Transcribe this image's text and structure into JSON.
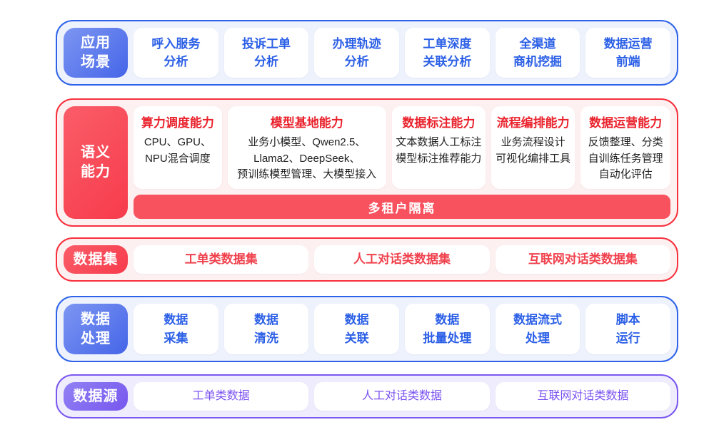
{
  "colors": {
    "blue_border": "#2e63e9",
    "blue_text": "#2b5fe6",
    "red_border": "#f8303c",
    "red_text": "#ea222c",
    "purple_border": "#7a58ef",
    "purple_text": "#7a52f0",
    "banner_bg": "#f8525f",
    "body_text": "#1f1f1f"
  },
  "scenarios": {
    "label": "应用\n场景",
    "items": [
      "呼入服务\n分析",
      "投诉工单\n分析",
      "办理轨迹\n分析",
      "工单深度\n关联分析",
      "全渠道\n商机挖掘",
      "数据运营\n前端"
    ]
  },
  "semantic": {
    "label": "语义\n能力",
    "columns": [
      {
        "title": "算力调度能力",
        "body": "CPU、GPU、\nNPU混合调度"
      },
      {
        "title": "模型基地能力",
        "body": "业务小模型、Qwen2.5、\nLlama2、DeepSeek、\n预训练模型管理、大模型接入"
      },
      {
        "title": "数据标注能力",
        "body": "文本数据人工标注\n模型标注推荐能力"
      },
      {
        "title": "流程编排能力",
        "body": "业务流程设计\n可视化编排工具"
      },
      {
        "title": "数据运营能力",
        "body": "反馈整理、分类\n自训练任务管理\n自动化评估"
      }
    ],
    "banner": "多租户隔离"
  },
  "datasets": {
    "label": "数据集",
    "items": [
      "工单类数据集",
      "人工对话类数据集",
      "互联网对话类数据集"
    ]
  },
  "processing": {
    "label": "数据\n处理",
    "items": [
      "数据\n采集",
      "数据\n清洗",
      "数据\n关联",
      "数据\n批量处理",
      "数据流式\n处理",
      "脚本\n运行"
    ]
  },
  "sources": {
    "label": "数据源",
    "items": [
      "工单类数据",
      "人工对话类数据",
      "互联网对话类数据"
    ]
  }
}
